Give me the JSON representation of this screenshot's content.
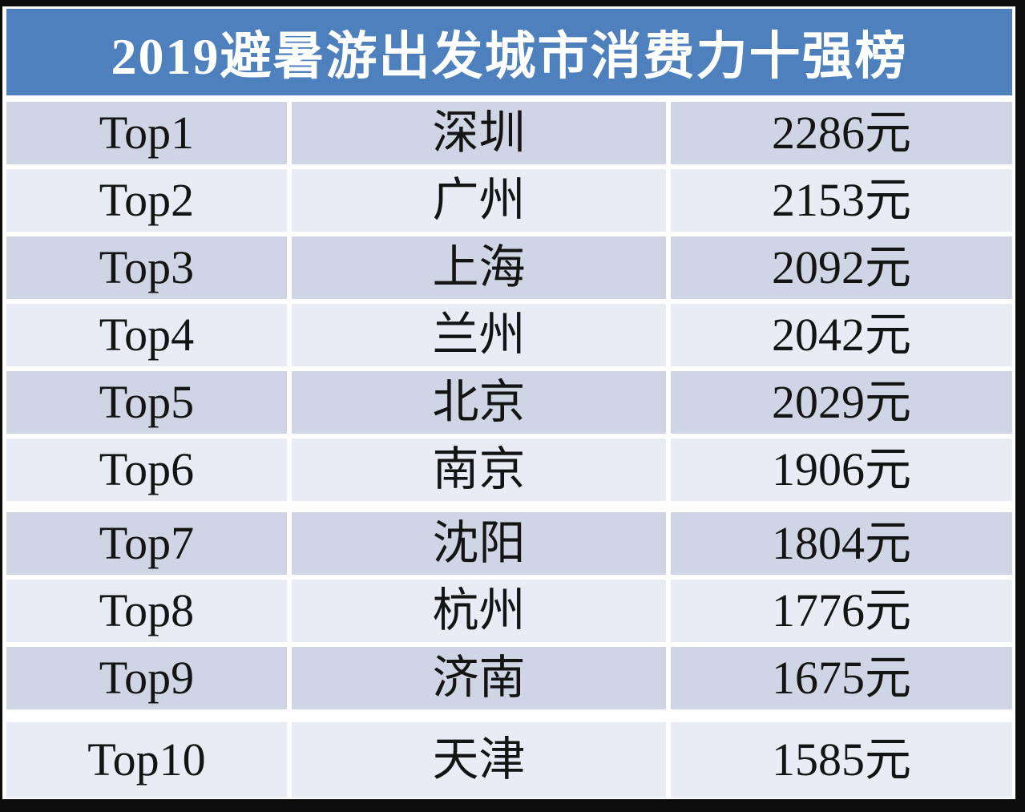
{
  "title": "2019避暑游出发城市消费力十强榜",
  "colors": {
    "header_blue": "#4d80bd",
    "row_dark": "#cfd5e4",
    "row_light": "#e9ecf4",
    "frame_black": "#0c0c0c",
    "text_dark": "#141414",
    "title_text": "#ffffff"
  },
  "chart_data": {
    "type": "table",
    "title": "2019避暑游出发城市消费力十强榜",
    "unit": "元",
    "rows": [
      {
        "rank": "Top1",
        "city": "深圳",
        "value": "2286元"
      },
      {
        "rank": "Top2",
        "city": "广州",
        "value": "2153元"
      },
      {
        "rank": "Top3",
        "city": "上海",
        "value": "2092元"
      },
      {
        "rank": "Top4",
        "city": "兰州",
        "value": "2042元"
      },
      {
        "rank": "Top5",
        "city": "北京",
        "value": "2029元"
      },
      {
        "rank": "Top6",
        "city": "南京",
        "value": "1906元"
      },
      {
        "rank": "Top7",
        "city": "沈阳",
        "value": "1804元"
      },
      {
        "rank": "Top8",
        "city": "杭州",
        "value": "1776元"
      },
      {
        "rank": "Top9",
        "city": "济南",
        "value": "1675元"
      },
      {
        "rank": "Top10",
        "city": "天津",
        "value": "1585元"
      }
    ],
    "values_yuan": [
      2286,
      2153,
      2092,
      2042,
      2029,
      1906,
      1804,
      1776,
      1675,
      1585
    ]
  }
}
